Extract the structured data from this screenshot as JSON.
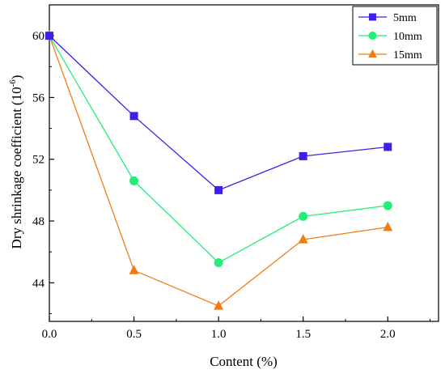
{
  "chart_data": {
    "type": "line",
    "xlabel": "Content (%)",
    "ylabel": "Dry shrinkage coefficient",
    "ylabel_unit_base": "(10",
    "ylabel_unit_exp": "-6",
    "ylabel_unit_close": ")",
    "xlim": [
      0.0,
      2.3
    ],
    "ylim": [
      41.5,
      62.0
    ],
    "x_ticks": [
      0.0,
      0.5,
      1.0,
      1.5,
      2.0
    ],
    "x_tick_labels": [
      "0.0",
      "0.5",
      "1.0",
      "1.5",
      "2.0"
    ],
    "y_ticks": [
      44,
      48,
      52,
      56,
      60
    ],
    "y_tick_labels": [
      "44",
      "48",
      "52",
      "56",
      "60"
    ],
    "legend_position": "top-right",
    "grid": false,
    "x": [
      0.0,
      0.5,
      1.0,
      1.5,
      2.0
    ],
    "series": [
      {
        "name": "5mm",
        "marker": "square",
        "color": "#3f1fe8",
        "values": [
          60.0,
          54.8,
          50.0,
          52.2,
          52.8
        ]
      },
      {
        "name": "10mm",
        "marker": "circle",
        "color": "#22ee77",
        "values": [
          60.0,
          50.6,
          45.3,
          48.3,
          49.0
        ]
      },
      {
        "name": "15mm",
        "marker": "triangle",
        "color": "#f07d14",
        "values": [
          60.0,
          44.8,
          42.5,
          46.8,
          47.6
        ]
      }
    ]
  }
}
